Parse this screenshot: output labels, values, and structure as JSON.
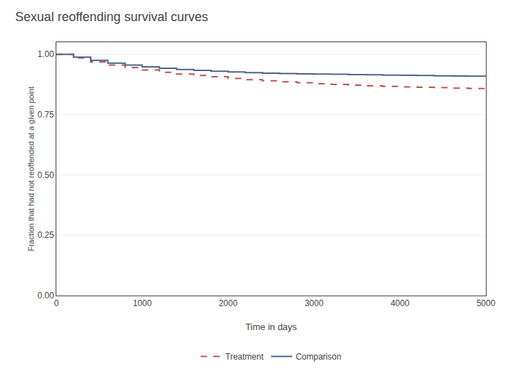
{
  "chart_data": {
    "type": "step",
    "title": "Sexual reoffending survival curves",
    "x_label": "Time in days",
    "y_label": "Fraction that had not reoffended at a given point",
    "xlim": [
      0,
      5000
    ],
    "ylim": [
      0.0,
      1.05
    ],
    "xticks": [
      0,
      1000,
      2000,
      3000,
      4000,
      5000
    ],
    "yticks": [
      {
        "value": 0.0,
        "label": "0.00"
      },
      {
        "value": 0.25,
        "label": "0.25"
      },
      {
        "value": 0.5,
        "label": "0.50"
      },
      {
        "value": 0.75,
        "label": "0.75"
      },
      {
        "value": 1.0,
        "label": "1.00"
      }
    ],
    "grid": true,
    "legend": "bottom",
    "series": [
      {
        "name": "Treatment",
        "color": "#c0504d",
        "line_style": "dashed",
        "x": [
          0,
          200,
          400,
          600,
          800,
          1000,
          1200,
          1400,
          1600,
          1800,
          2000,
          2200,
          2400,
          2600,
          2800,
          3000,
          3200,
          3400,
          3600,
          3800,
          4000,
          4200,
          4400,
          4600,
          4800,
          5000
        ],
        "values": [
          1.0,
          0.985,
          0.968,
          0.955,
          0.945,
          0.935,
          0.925,
          0.918,
          0.912,
          0.907,
          0.9,
          0.895,
          0.89,
          0.886,
          0.882,
          0.878,
          0.875,
          0.872,
          0.869,
          0.867,
          0.865,
          0.863,
          0.862,
          0.86,
          0.858,
          0.856
        ]
      },
      {
        "name": "Comparison",
        "color": "#4f6288",
        "line_style": "solid",
        "x": [
          0,
          200,
          400,
          600,
          800,
          1000,
          1200,
          1400,
          1600,
          1800,
          2000,
          2200,
          2400,
          2600,
          2800,
          3000,
          3200,
          3400,
          3600,
          3800,
          4000,
          4200,
          4400,
          4600,
          4800,
          5000
        ],
        "values": [
          1.0,
          0.988,
          0.975,
          0.963,
          0.955,
          0.948,
          0.942,
          0.937,
          0.933,
          0.93,
          0.927,
          0.924,
          0.922,
          0.92,
          0.919,
          0.918,
          0.917,
          0.916,
          0.915,
          0.914,
          0.913,
          0.912,
          0.911,
          0.91,
          0.909,
          0.908
        ]
      }
    ]
  }
}
